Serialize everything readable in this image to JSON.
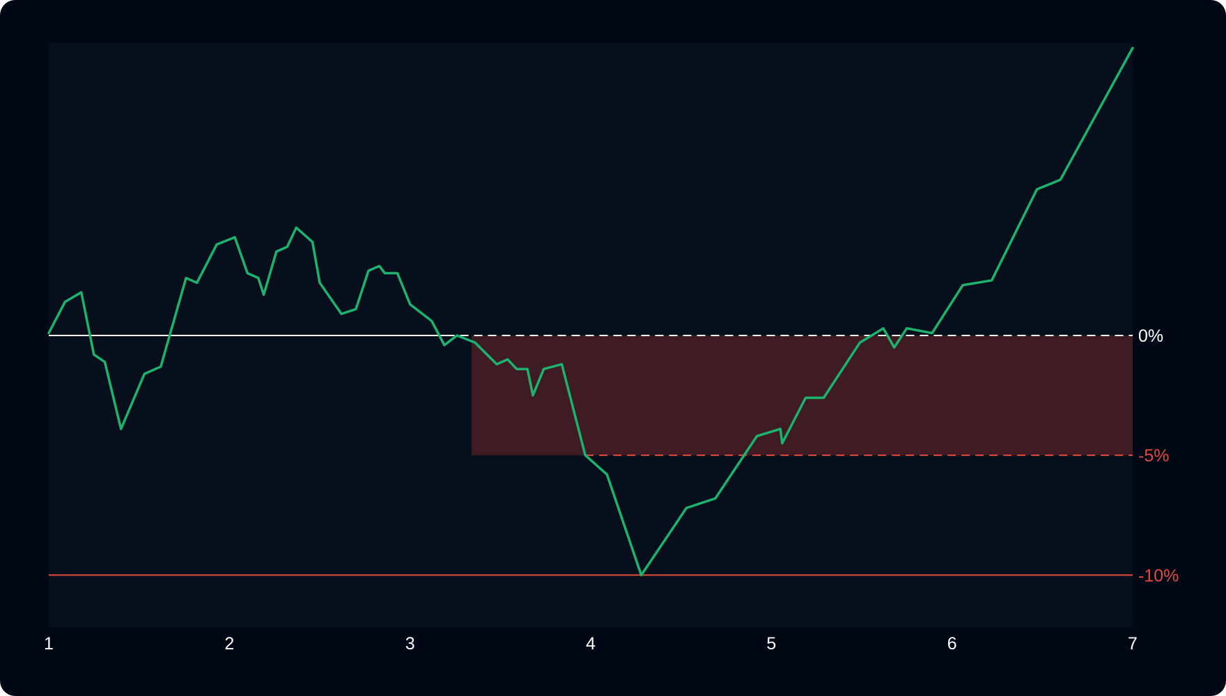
{
  "chart_data": {
    "type": "line",
    "title": "",
    "xlabel": "",
    "ylabel": "",
    "x_ticks": [
      "1",
      "2",
      "3",
      "4",
      "5",
      "6",
      "7"
    ],
    "xlim": [
      1,
      7
    ],
    "ylim": [
      -12.2,
      12.2
    ],
    "grid": false,
    "colors": {
      "line": "#1bb46f",
      "zero_line": "#ffffff",
      "danger": "#e24a3d",
      "drawdown_fill": "#3f1b24",
      "plot_bg": "#070e1c",
      "background": "#010815"
    },
    "levels": [
      {
        "label": "0%",
        "value": 0,
        "color": "#ffffff"
      },
      {
        "label": "-5%",
        "value": -5,
        "color": "#e24a3d"
      },
      {
        "label": "-10%",
        "value": -10,
        "color": "#e24a3d"
      }
    ],
    "drawdown_band": {
      "x_start": 3.34,
      "x_end": 7,
      "y_top": 0,
      "y_bottom": -5
    },
    "zero_line_dashed_from_x": 3.2,
    "minus5_line_from_x": 3.97,
    "series": [
      {
        "x": [
          1.0,
          1.09,
          1.18,
          1.25,
          1.31,
          1.4,
          1.53,
          1.62,
          1.76,
          1.82,
          1.93,
          2.03,
          2.1,
          2.16,
          2.19,
          2.26,
          2.32,
          2.37,
          2.46,
          2.5,
          2.62,
          2.7,
          2.77,
          2.83,
          2.86,
          2.93,
          3.0,
          3.12,
          3.19,
          3.26,
          3.36,
          3.48,
          3.54,
          3.59,
          3.65,
          3.68,
          3.74,
          3.84,
          3.97,
          4.09,
          4.28,
          4.53,
          4.69,
          4.92,
          5.05,
          5.06,
          5.19,
          5.29,
          5.49,
          5.62,
          5.68,
          5.75,
          5.89,
          6.06,
          6.22,
          6.47,
          6.6,
          7.0
        ],
        "values": [
          0.1,
          1.4,
          1.8,
          -0.8,
          -1.1,
          -3.9,
          -1.6,
          -1.3,
          2.4,
          2.2,
          3.8,
          4.1,
          2.6,
          2.4,
          1.7,
          3.5,
          3.7,
          4.5,
          3.9,
          2.2,
          0.9,
          1.1,
          2.7,
          2.9,
          2.6,
          2.6,
          1.3,
          0.6,
          -0.4,
          0.0,
          -0.3,
          -1.2,
          -1.0,
          -1.4,
          -1.4,
          -2.5,
          -1.4,
          -1.2,
          -5.0,
          -5.8,
          -10.0,
          -7.2,
          -6.8,
          -4.2,
          -3.9,
          -4.5,
          -2.6,
          -2.6,
          -0.3,
          0.3,
          -0.5,
          0.3,
          0.1,
          2.1,
          2.3,
          6.1,
          6.5,
          12.0
        ]
      }
    ]
  }
}
